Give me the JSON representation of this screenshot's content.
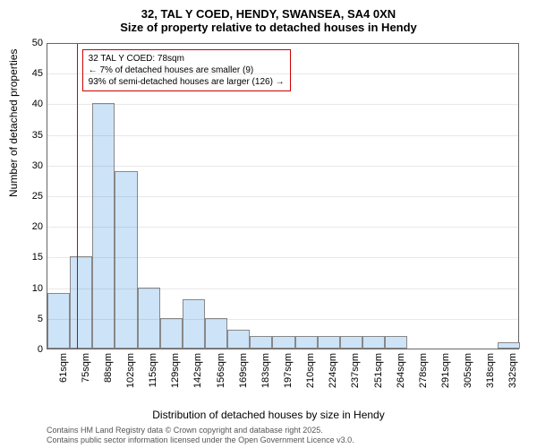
{
  "title_line1": "32, TAL Y COED, HENDY, SWANSEA, SA4 0XN",
  "title_line2": "Size of property relative to detached houses in Hendy",
  "ylabel": "Number of detached properties",
  "xlabel": "Distribution of detached houses by size in Hendy",
  "footer_line1": "Contains HM Land Registry data © Crown copyright and database right 2025.",
  "footer_line2": "Contains public sector information licensed under the Open Government Licence v3.0.",
  "chart": {
    "type": "histogram",
    "ylim": [
      0,
      50
    ],
    "ytick_step": 5,
    "xticks": [
      "61sqm",
      "75sqm",
      "88sqm",
      "102sqm",
      "115sqm",
      "129sqm",
      "142sqm",
      "156sqm",
      "169sqm",
      "183sqm",
      "197sqm",
      "210sqm",
      "224sqm",
      "237sqm",
      "251sqm",
      "264sqm",
      "278sqm",
      "291sqm",
      "305sqm",
      "318sqm",
      "332sqm"
    ],
    "values": [
      9,
      15,
      40,
      29,
      10,
      5,
      8,
      5,
      3,
      2,
      2,
      2,
      2,
      2,
      2,
      2,
      0,
      0,
      0,
      0,
      1
    ],
    "bar_fill": "#cde3f7",
    "bar_border": "#888888",
    "grid_color": "#666666",
    "background_color": "#ffffff",
    "refline_x_index": 1.3,
    "refline_color": "#cc0000",
    "callout": {
      "border_color": "#cc0000",
      "lines": [
        "32 TAL Y COED: 78sqm",
        "← 7% of detached houses are smaller (9)",
        "93% of semi-detached houses are larger (126) →"
      ]
    }
  }
}
